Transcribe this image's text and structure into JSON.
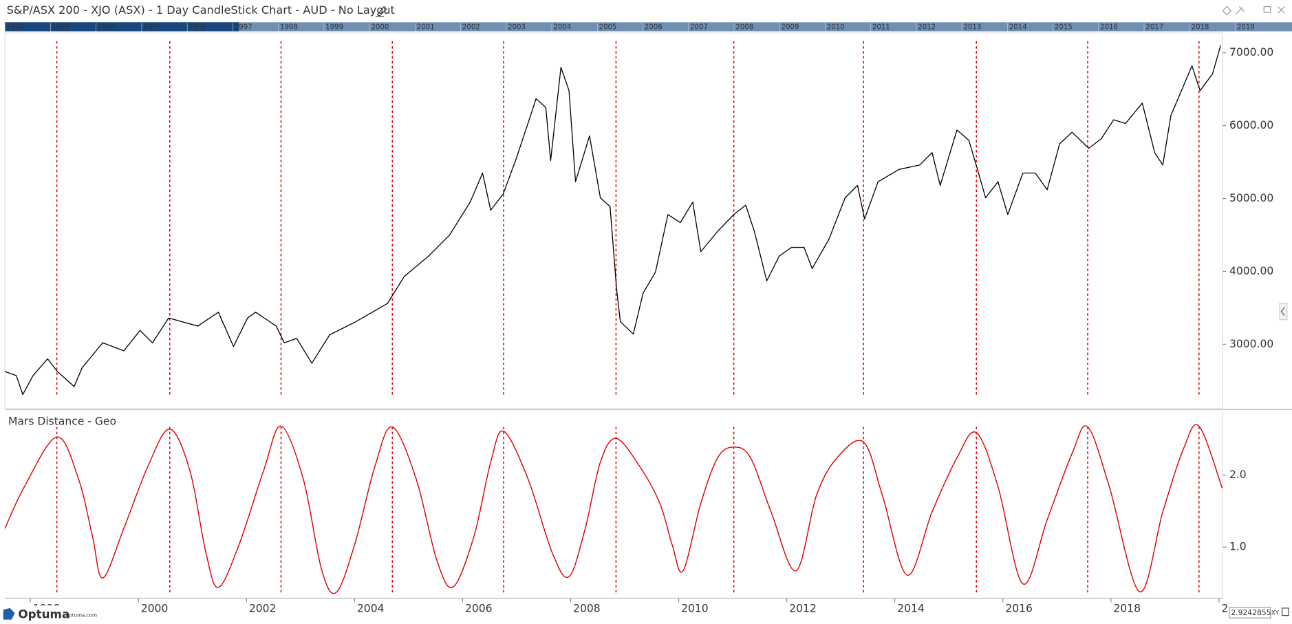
{
  "chart_data": [
    {
      "type": "line",
      "title": "S&P/ASX 200 - XJO (ASX) - 1 Day CandleStick Chart - AUD - No Layout",
      "xlim": [
        1997.53,
        2020.07
      ],
      "ylim": [
        2116,
        7272
      ],
      "yticks": [
        {
          "value": 3000,
          "label": "3000.00"
        },
        {
          "value": 4000,
          "label": "4000.00"
        },
        {
          "value": 5000,
          "label": "5000.00"
        },
        {
          "value": 6000,
          "label": "6000.00"
        },
        {
          "value": 7000,
          "label": "7000.00"
        }
      ],
      "cycle_lines": [
        1998.49,
        2000.58,
        2002.64,
        2004.7,
        2006.76,
        2008.84,
        2011.02,
        2013.42,
        2015.51,
        2017.57,
        2019.63
      ],
      "cycle_color": "#e00000",
      "x": [
        1997.53,
        1997.74,
        1997.86,
        1998.05,
        1998.32,
        1998.5,
        1998.81,
        1998.96,
        1999.34,
        1999.73,
        2000.03,
        2000.26,
        2000.56,
        2001.1,
        2001.48,
        2001.76,
        2002.02,
        2002.17,
        2002.55,
        2002.7,
        2002.93,
        2003.21,
        2003.54,
        2004.0,
        2004.61,
        2004.92,
        2005.37,
        2005.76,
        2006.14,
        2006.37,
        2006.52,
        2006.75,
        2006.98,
        2007.21,
        2007.36,
        2007.54,
        2007.63,
        2007.82,
        2007.97,
        2008.09,
        2008.35,
        2008.55,
        2008.73,
        2008.85,
        2008.92,
        2009.16,
        2009.34,
        2009.57,
        2009.8,
        2010.03,
        2010.26,
        2010.41,
        2010.72,
        2011.02,
        2011.24,
        2011.4,
        2011.63,
        2011.86,
        2012.09,
        2012.32,
        2012.47,
        2012.78,
        2013.08,
        2013.31,
        2013.44,
        2013.69,
        2014.08,
        2014.46,
        2014.69,
        2014.84,
        2015.15,
        2015.37,
        2015.53,
        2015.68,
        2015.91,
        2016.09,
        2016.37,
        2016.6,
        2016.82,
        2017.05,
        2017.28,
        2017.59,
        2017.82,
        2018.05,
        2018.27,
        2018.58,
        2018.81,
        2018.96,
        2019.11,
        2019.5,
        2019.65,
        2019.88,
        2020.03
      ],
      "series": [
        {
          "color": "#000000",
          "values": [
            2626,
            2570,
            2310,
            2570,
            2800,
            2626,
            2420,
            2680,
            3020,
            2910,
            3190,
            3020,
            3360,
            3250,
            3440,
            2970,
            3360,
            3440,
            3250,
            3020,
            3080,
            2740,
            3130,
            3300,
            3560,
            3930,
            4210,
            4500,
            4950,
            5350,
            4840,
            5060,
            5520,
            6030,
            6370,
            6250,
            5520,
            6800,
            6480,
            5230,
            5860,
            5010,
            4890,
            3760,
            3310,
            3140,
            3700,
            3990,
            4780,
            4670,
            4950,
            4270,
            4550,
            4780,
            4910,
            4550,
            3870,
            4210,
            4330,
            4330,
            4040,
            4440,
            5010,
            5180,
            4720,
            5230,
            5400,
            5460,
            5630,
            5180,
            5940,
            5800,
            5400,
            5010,
            5230,
            4780,
            5350,
            5350,
            5120,
            5750,
            5910,
            5690,
            5820,
            6080,
            6030,
            6310,
            5630,
            5460,
            6140,
            6820,
            6480,
            6710,
            7100
          ]
        }
      ]
    },
    {
      "type": "line",
      "xlim": [
        1997.53,
        2020.07
      ],
      "ylim": [
        0.29,
        2.9
      ],
      "yticks": [
        {
          "value": 1,
          "label": "1.0"
        },
        {
          "value": 2,
          "label": "2.0"
        }
      ],
      "xticks": [
        1998,
        2000,
        2002,
        2004,
        2006,
        2008,
        2010,
        2012,
        2014,
        2016,
        2018,
        {
          "value": 2020,
          "label": "2"
        }
      ],
      "x": [
        1997.53,
        1997.89,
        1998.49,
        1998.89,
        1999.15,
        1999.34,
        1999.73,
        2000.18,
        2000.58,
        2000.95,
        2001.25,
        2001.48,
        2001.86,
        2002.32,
        2002.64,
        2003.05,
        2003.39,
        2003.66,
        2004.0,
        2004.38,
        2004.7,
        2005.14,
        2005.53,
        2005.83,
        2006.21,
        2006.52,
        2006.76,
        2007.21,
        2007.66,
        2007.97,
        2008.27,
        2008.55,
        2008.84,
        2009.27,
        2009.65,
        2009.88,
        2010.08,
        2010.41,
        2010.72,
        2011.02,
        2011.33,
        2011.71,
        2012.17,
        2012.55,
        2012.93,
        2013.42,
        2013.77,
        2014.23,
        2014.69,
        2015.15,
        2015.51,
        2015.91,
        2016.37,
        2016.82,
        2017.28,
        2017.57,
        2017.97,
        2018.53,
        2018.96,
        2019.34,
        2019.63,
        2020.06
      ],
      "series": [
        {
          "name": "Mars Distance - Geo",
          "color": "#e00000",
          "values": [
            1.26,
            1.84,
            2.53,
            1.95,
            1.15,
            0.57,
            1.26,
            2.13,
            2.64,
            2.07,
            0.92,
            0.44,
            1.03,
            2.07,
            2.68,
            1.95,
            0.69,
            0.37,
            1.03,
            2.13,
            2.67,
            1.95,
            0.8,
            0.45,
            1.15,
            2.18,
            2.61,
            1.95,
            0.92,
            0.59,
            1.26,
            2.18,
            2.51,
            2.13,
            1.61,
            1.03,
            0.67,
            1.61,
            2.24,
            2.39,
            2.24,
            1.49,
            0.67,
            1.72,
            2.24,
            2.46,
            1.72,
            0.61,
            1.49,
            2.24,
            2.59,
            1.84,
            0.49,
            1.38,
            2.3,
            2.67,
            1.84,
            0.38,
            1.49,
            2.36,
            2.68,
            1.82
          ]
        }
      ]
    }
  ],
  "navigator": {
    "years": [
      "1992",
      "1993",
      "1994",
      "1995",
      "1996",
      "1997",
      "1998",
      "1999",
      "2000",
      "2001",
      "2002",
      "2003",
      "2004",
      "2005",
      "2006",
      "2007",
      "2008",
      "2009",
      "2010",
      "2011",
      "2012",
      "2013",
      "2014",
      "2015",
      "2016",
      "2017",
      "2018",
      "2019"
    ]
  },
  "footer": {
    "logo": "Optuma",
    "site": "optuma.com",
    "readout": "2.9242855",
    "mode": "XY"
  }
}
